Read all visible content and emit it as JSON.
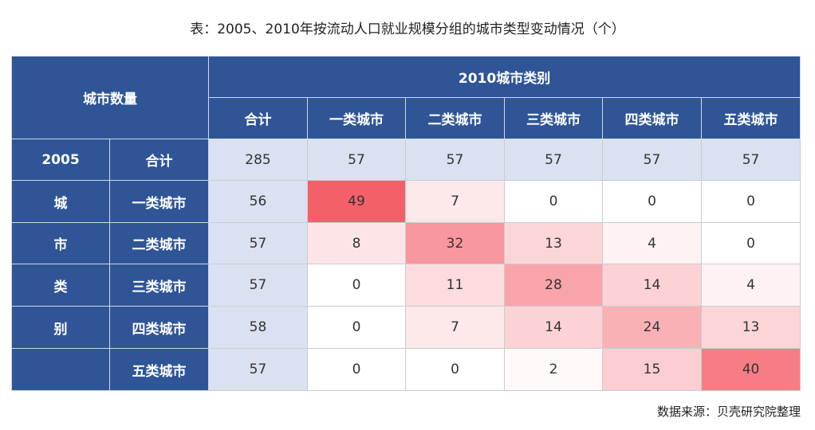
{
  "title": "表：2005、2010年按流动人口就业规模分组的城市类型变动情况（个）",
  "source": "数据来源：贝壳研究院整理",
  "colors": {
    "header": "#2f5597",
    "total_cell": "#dae1f1",
    "heat_max": "#f4606a",
    "heat_min": "#ffffff"
  },
  "chart_data": {
    "type": "table",
    "corner_label": "城市数量",
    "col_group_label": "2010城市类别",
    "row_group_label": "2005",
    "row_group_side_label": [
      "城",
      "市",
      "类",
      "别"
    ],
    "columns": [
      "合计",
      "一类城市",
      "二类城市",
      "三类城市",
      "四类城市",
      "五类城市"
    ],
    "rows": [
      {
        "label": "合计",
        "values": [
          285,
          57,
          57,
          57,
          57,
          57
        ]
      },
      {
        "label": "一类城市",
        "values": [
          56,
          49,
          7,
          0,
          0,
          0
        ]
      },
      {
        "label": "二类城市",
        "values": [
          57,
          8,
          32,
          13,
          4,
          0
        ]
      },
      {
        "label": "三类城市",
        "values": [
          57,
          0,
          11,
          28,
          14,
          4
        ]
      },
      {
        "label": "四类城市",
        "values": [
          58,
          0,
          7,
          14,
          24,
          13
        ]
      },
      {
        "label": "五类城市",
        "values": [
          57,
          0,
          0,
          2,
          15,
          40
        ]
      }
    ]
  }
}
